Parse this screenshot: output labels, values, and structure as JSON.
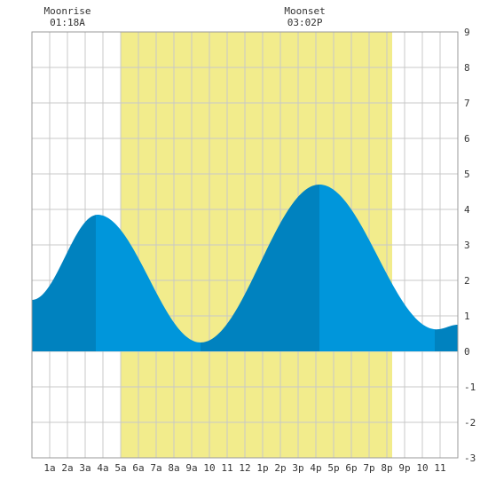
{
  "moon": {
    "rise_label": "Moonrise",
    "rise_time": "01:18A",
    "set_label": "Moonset",
    "set_time": "03:02P"
  },
  "colors": {
    "daylight": "#f2ec8c",
    "tide_dark": "#0082bf",
    "tide_light": "#0096db",
    "grid": "#c8c8c8"
  },
  "chart_data": {
    "type": "area",
    "title": "",
    "xlabel": "",
    "ylabel": "",
    "xlim": [
      0,
      24
    ],
    "ylim": [
      -3,
      9
    ],
    "grid": true,
    "x_tick_labels": [
      "1a",
      "2a",
      "3a",
      "4a",
      "5a",
      "6a",
      "7a",
      "8a",
      "9a",
      "10",
      "11",
      "12",
      "1p",
      "2p",
      "3p",
      "4p",
      "5p",
      "6p",
      "7p",
      "8p",
      "9p",
      "10",
      "11"
    ],
    "y_ticks": [
      -3,
      -2,
      -1,
      0,
      1,
      2,
      3,
      4,
      5,
      6,
      7,
      8,
      9
    ],
    "daylight_hours": [
      5.0,
      20.3
    ],
    "moonrise_hour": 1.3,
    "moonset_hour": 15.03,
    "tide_extrema": [
      {
        "hour": 0.0,
        "height": 1.45
      },
      {
        "hour": 3.7,
        "height": 3.85
      },
      {
        "hour": 9.5,
        "height": 0.25
      },
      {
        "hour": 16.2,
        "height": 4.7
      },
      {
        "hour": 22.8,
        "height": 0.62
      },
      {
        "hour": 24.0,
        "height": 0.75
      }
    ],
    "shading_breaks": [
      3.6,
      9.5,
      16.2,
      22.7
    ]
  }
}
